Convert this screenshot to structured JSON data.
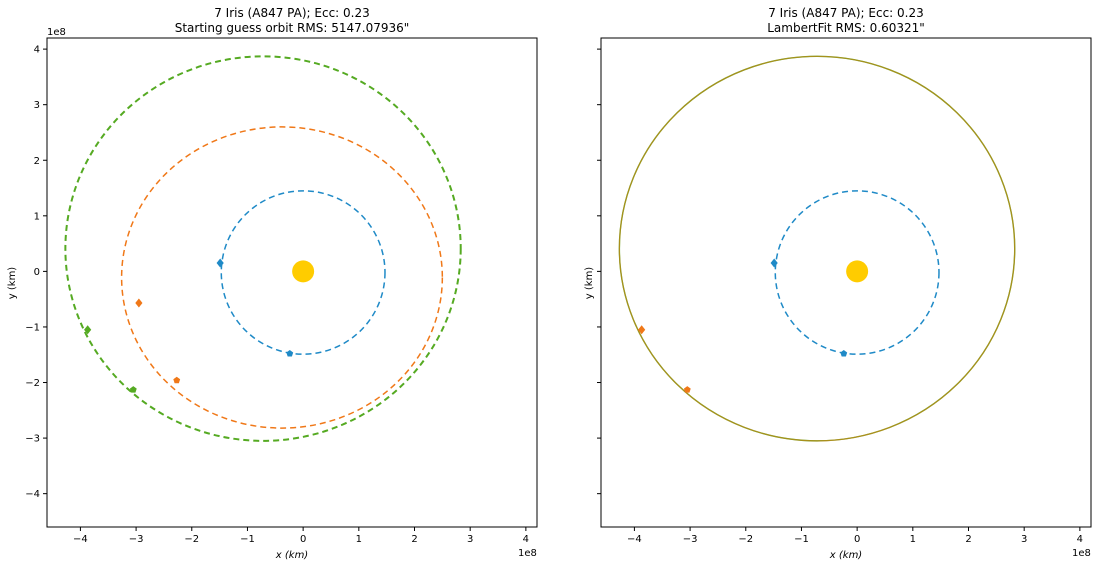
{
  "chart_data": [
    {
      "type": "scatter",
      "title": "7 Iris (A847 PA); Ecc: 0.23",
      "subtitle": "Starting guess orbit RMS: 5147.07936\"",
      "xlabel": "x (km)",
      "ylabel": "y (km)",
      "x_offset_label": "1e8",
      "y_offset_label": "1e8",
      "xlim": [
        -4.6,
        4.2
      ],
      "ylim": [
        -4.6,
        4.2
      ],
      "xticks": [
        "−4",
        "−3",
        "−2",
        "−1",
        "0",
        "1",
        "2",
        "3",
        "4"
      ],
      "yticks": [
        "−4",
        "−3",
        "−2",
        "−1",
        "0",
        "1",
        "2",
        "3",
        "4"
      ],
      "grid": false,
      "sun": {
        "x": 0,
        "y": 0,
        "color": "#FFCC00"
      },
      "orbits": [
        {
          "color": "#1f8ac7",
          "center_x": 0.0,
          "center_y": -0.02,
          "radius_x": 1.47,
          "radius_y": 1.47,
          "dash": "6,4",
          "width": 1.5
        },
        {
          "color": "#f07818",
          "center_x": -0.38,
          "center_y": -0.11,
          "radius_x": 2.88,
          "radius_y": 2.71,
          "dash": "6,4",
          "width": 1.5
        },
        {
          "color": "#55aa22",
          "center_x": -0.72,
          "center_y": 0.41,
          "radius_x": 3.55,
          "radius_y": 3.46,
          "dash": "6,4",
          "width": 2
        }
      ],
      "points": [
        {
          "x": -1.49,
          "y": 0.15,
          "color": "#1f8ac7",
          "marker": "diamond"
        },
        {
          "x": -0.24,
          "y": -1.48,
          "color": "#1f8ac7",
          "marker": "pentagon"
        },
        {
          "x": -2.95,
          "y": -0.57,
          "color": "#f07818",
          "marker": "diamond"
        },
        {
          "x": -2.27,
          "y": -1.96,
          "color": "#f07818",
          "marker": "pentagon"
        },
        {
          "x": -3.87,
          "y": -1.05,
          "color": "#55aa22",
          "marker": "diamond"
        },
        {
          "x": -3.05,
          "y": -2.13,
          "color": "#55aa22",
          "marker": "pentagon"
        }
      ]
    },
    {
      "type": "scatter",
      "title": "7 Iris (A847 PA); Ecc: 0.23",
      "subtitle": "LambertFit RMS: 0.60321\"",
      "xlabel": "x (km)",
      "ylabel": "y (km)",
      "x_offset_label": "1e8",
      "xlim": [
        -4.6,
        4.2
      ],
      "ylim": [
        -4.6,
        4.2
      ],
      "xticks": [
        "−4",
        "−3",
        "−2",
        "−1",
        "0",
        "1",
        "2",
        "3",
        "4"
      ],
      "yticks": [],
      "grid": false,
      "sun": {
        "x": 0,
        "y": 0,
        "color": "#FFCC00"
      },
      "orbits": [
        {
          "color": "#1f8ac7",
          "center_x": 0.0,
          "center_y": -0.02,
          "radius_x": 1.47,
          "radius_y": 1.47,
          "dash": "6,4",
          "width": 1.5
        },
        {
          "color": "#55aa22",
          "center_x": -0.72,
          "center_y": 0.41,
          "radius_x": 3.55,
          "radius_y": 3.46,
          "dash": "",
          "width": 1.4
        },
        {
          "color": "#f07818",
          "center_x": -0.72,
          "center_y": 0.41,
          "radius_x": 3.55,
          "radius_y": 3.46,
          "dash": "",
          "width": 1.2,
          "opacity": 0.55
        }
      ],
      "points": [
        {
          "x": -1.49,
          "y": 0.15,
          "color": "#1f8ac7",
          "marker": "diamond"
        },
        {
          "x": -0.24,
          "y": -1.48,
          "color": "#1f8ac7",
          "marker": "pentagon"
        },
        {
          "x": -3.87,
          "y": -1.05,
          "color": "#f07818",
          "marker": "diamond"
        },
        {
          "x": -3.05,
          "y": -2.13,
          "color": "#f07818",
          "marker": "pentagon"
        }
      ]
    }
  ]
}
